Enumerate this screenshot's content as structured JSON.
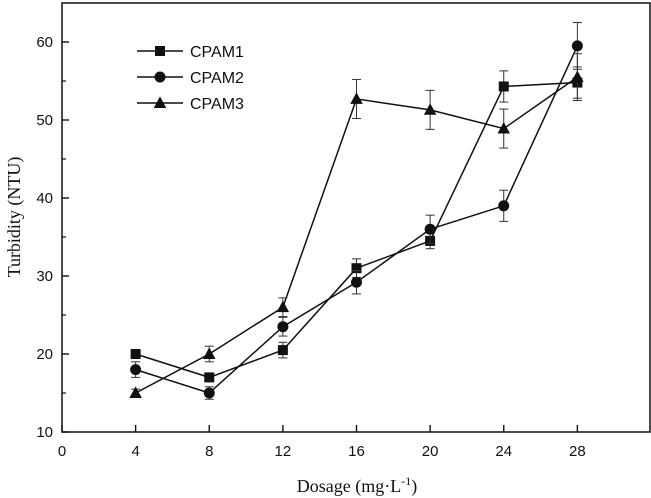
{
  "chart_data": {
    "type": "line",
    "title": "",
    "xlabel": "Dosage (mg·L",
    "xlabel_superscript": "-1",
    "xlabel_suffix": ")",
    "ylabel": "Turbidity (NTU)",
    "xlim": [
      0,
      32
    ],
    "ylim": [
      10,
      65
    ],
    "x_ticks": [
      0,
      4,
      8,
      12,
      16,
      20,
      24,
      28
    ],
    "y_ticks": [
      10,
      20,
      30,
      40,
      50,
      60
    ],
    "x": [
      4,
      8,
      12,
      16,
      20,
      24,
      28
    ],
    "legend_position": "top-left",
    "grid": false,
    "series": [
      {
        "name": "CPAM1",
        "marker": "square",
        "values": [
          20.0,
          17.0,
          20.5,
          31.0,
          34.5,
          54.3,
          54.8
        ],
        "errors": [
          0.0,
          0.0,
          1.0,
          1.2,
          1.0,
          2.0,
          2.0
        ]
      },
      {
        "name": "CPAM2",
        "marker": "circle",
        "values": [
          18.0,
          15.0,
          23.5,
          29.2,
          36.0,
          39.0,
          59.5
        ],
        "errors": [
          1.0,
          0.8,
          1.2,
          1.5,
          1.8,
          2.0,
          3.0
        ]
      },
      {
        "name": "CPAM3",
        "marker": "triangle",
        "values": [
          15.0,
          20.0,
          26.0,
          52.7,
          51.3,
          48.9,
          55.5
        ],
        "errors": [
          0.5,
          1.0,
          1.2,
          2.5,
          2.5,
          2.5,
          3.0
        ]
      }
    ]
  }
}
